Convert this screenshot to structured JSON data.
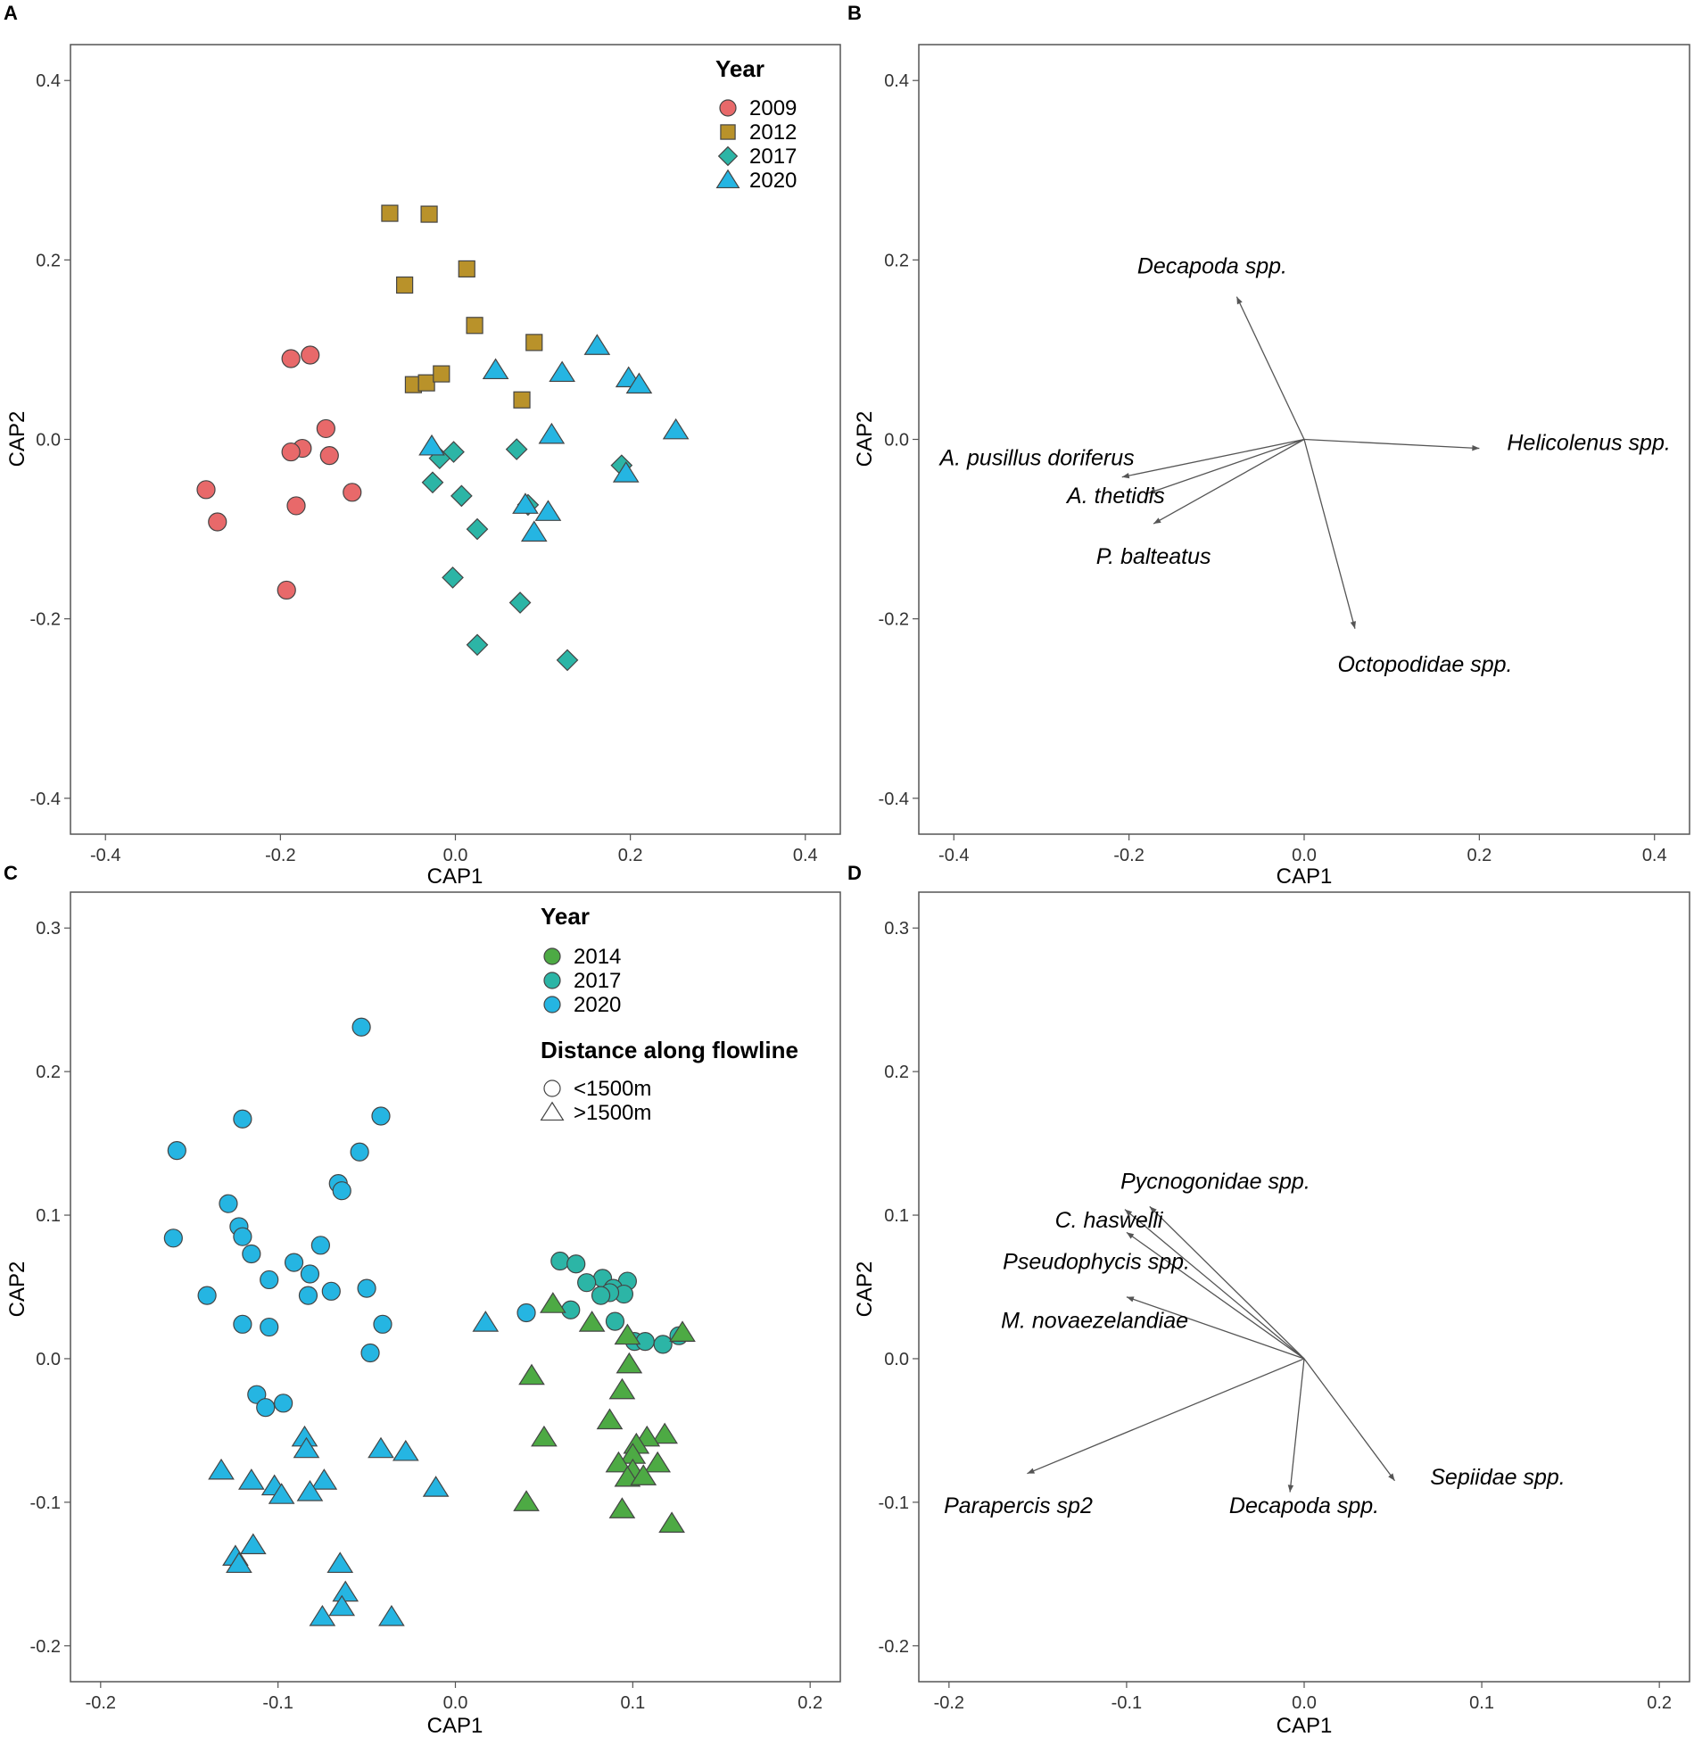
{
  "colors": {
    "y2009": "#E8696A",
    "y2012": "#B9922A",
    "y2014": "#4DAA44",
    "y2017": "#2CB5A6",
    "y2020": "#25B5E2",
    "vector": "#555555"
  },
  "chart_data": [
    {
      "type": "scatter",
      "panel": "A",
      "xlabel": "CAP1",
      "ylabel": "CAP2",
      "xlim": [
        -0.44,
        0.44
      ],
      "ylim": [
        -0.44,
        0.44
      ],
      "xticks": [
        -0.4,
        -0.2,
        0.0,
        0.2,
        0.4
      ],
      "xtick_labels": [
        "-0.4",
        "-0.2",
        "0.0",
        "0.2",
        "0.4"
      ],
      "yticks": [
        -0.4,
        -0.2,
        0.0,
        0.2,
        0.4
      ],
      "ytick_labels": [
        "-0.4",
        "-0.2",
        "0.0",
        "0.2",
        "0.4"
      ],
      "legend": {
        "title": "Year",
        "position": "top-right",
        "entries": [
          {
            "label": "2009",
            "shape": "circle",
            "color": "#E8696A"
          },
          {
            "label": "2012",
            "shape": "square",
            "color": "#B9922A"
          },
          {
            "label": "2017",
            "shape": "diamond",
            "color": "#2CB5A6"
          },
          {
            "label": "2020",
            "shape": "triangle",
            "color": "#25B5E2"
          }
        ]
      },
      "series": [
        {
          "name": "2009",
          "shape": "circle",
          "color": "#E8696A",
          "points": [
            [
              -0.188,
              0.09
            ],
            [
              -0.166,
              0.094
            ],
            [
              -0.148,
              0.012
            ],
            [
              -0.175,
              -0.01
            ],
            [
              -0.188,
              -0.014
            ],
            [
              -0.144,
              -0.018
            ],
            [
              -0.285,
              -0.056
            ],
            [
              -0.118,
              -0.059
            ],
            [
              -0.272,
              -0.092
            ],
            [
              -0.182,
              -0.074
            ],
            [
              -0.193,
              -0.168
            ]
          ]
        },
        {
          "name": "2012",
          "shape": "square",
          "color": "#B9922A",
          "points": [
            [
              -0.075,
              0.252
            ],
            [
              -0.03,
              0.251
            ],
            [
              -0.058,
              0.172
            ],
            [
              0.013,
              0.19
            ],
            [
              0.022,
              0.127
            ],
            [
              0.09,
              0.108
            ],
            [
              -0.048,
              0.061
            ],
            [
              -0.033,
              0.063
            ],
            [
              -0.016,
              0.073
            ],
            [
              0.076,
              0.044
            ]
          ]
        },
        {
          "name": "2017",
          "shape": "diamond",
          "color": "#2CB5A6",
          "points": [
            [
              -0.018,
              -0.021
            ],
            [
              -0.002,
              -0.014
            ],
            [
              0.07,
              -0.011
            ],
            [
              -0.026,
              -0.048
            ],
            [
              0.007,
              -0.063
            ],
            [
              0.083,
              -0.073
            ],
            [
              0.025,
              -0.1
            ],
            [
              -0.003,
              -0.154
            ],
            [
              0.074,
              -0.182
            ],
            [
              0.025,
              -0.229
            ],
            [
              0.128,
              -0.246
            ],
            [
              0.19,
              -0.029
            ]
          ]
        },
        {
          "name": "2020",
          "shape": "triangle",
          "color": "#25B5E2",
          "points": [
            [
              0.162,
              0.104
            ],
            [
              0.122,
              0.074
            ],
            [
              0.046,
              0.077
            ],
            [
              0.198,
              0.068
            ],
            [
              0.21,
              0.061
            ],
            [
              0.252,
              0.01
            ],
            [
              0.11,
              0.005
            ],
            [
              -0.027,
              -0.008
            ],
            [
              0.195,
              -0.038
            ],
            [
              0.08,
              -0.073
            ],
            [
              0.106,
              -0.081
            ],
            [
              0.09,
              -0.104
            ]
          ]
        }
      ]
    },
    {
      "type": "biplot-vectors",
      "panel": "B",
      "xlabel": "CAP1",
      "ylabel": "CAP2",
      "xlim": [
        -0.44,
        0.44
      ],
      "ylim": [
        -0.44,
        0.44
      ],
      "xticks": [
        -0.4,
        -0.2,
        0.0,
        0.2,
        0.4
      ],
      "xtick_labels": [
        "-0.4",
        "-0.2",
        "0.0",
        "0.2",
        "0.4"
      ],
      "yticks": [
        -0.4,
        -0.2,
        0.0,
        0.2,
        0.4
      ],
      "ytick_labels": [
        "-0.4",
        "-0.2",
        "0.0",
        "0.2",
        "0.4"
      ],
      "vectors": [
        {
          "label": "Decapoda spp.",
          "x": -0.077,
          "y": 0.159,
          "label_x": -0.105,
          "label_y": 0.194
        },
        {
          "label": "Helicolenus spp.",
          "x": 0.2,
          "y": -0.01,
          "label_x": 0.325,
          "label_y": -0.003
        },
        {
          "label": "A. pusillus doriferus",
          "x": -0.208,
          "y": -0.042,
          "label_x": -0.305,
          "label_y": -0.02
        },
        {
          "label": "A. thetidis",
          "x": -0.178,
          "y": -0.06,
          "label_x": -0.215,
          "label_y": -0.062
        },
        {
          "label": "P. balteatus",
          "x": -0.172,
          "y": -0.094,
          "label_x": -0.172,
          "label_y": -0.13
        },
        {
          "label": "Octopodidae spp.",
          "x": 0.058,
          "y": -0.211,
          "label_x": 0.138,
          "label_y": -0.25
        }
      ]
    },
    {
      "type": "scatter",
      "panel": "C",
      "xlabel": "CAP1",
      "ylabel": "CAP2",
      "xlim": [
        -0.217,
        0.217
      ],
      "ylim": [
        -0.225,
        0.325
      ],
      "xticks": [
        -0.2,
        -0.1,
        0.0,
        0.1,
        0.2
      ],
      "xtick_labels": [
        "-0.2",
        "-0.1",
        "0.0",
        "0.1",
        "0.2"
      ],
      "yticks": [
        -0.2,
        -0.1,
        0.0,
        0.1,
        0.2,
        0.3
      ],
      "ytick_labels": [
        "-0.2",
        "-0.1",
        "0.0",
        "0.1",
        "0.2",
        "0.3"
      ],
      "legend": {
        "title": "Year",
        "position": "top-right",
        "entries": [
          {
            "label": "2014",
            "color": "#4DAA44"
          },
          {
            "label": "2017",
            "color": "#2CB5A6"
          },
          {
            "label": "2020",
            "color": "#25B5E2"
          }
        ],
        "shape_title": "Distance along flowline",
        "shape_entries": [
          {
            "label": "<1500m",
            "shape": "circle"
          },
          {
            "label": ">1500m",
            "shape": "triangle"
          }
        ]
      },
      "series": [
        {
          "name": "2020 <1500m",
          "shape": "circle",
          "color": "#25B5E2",
          "points": [
            [
              -0.053,
              0.231
            ],
            [
              -0.042,
              0.169
            ],
            [
              -0.12,
              0.167
            ],
            [
              -0.157,
              0.145
            ],
            [
              -0.054,
              0.144
            ],
            [
              -0.066,
              0.122
            ],
            [
              -0.064,
              0.117
            ],
            [
              -0.128,
              0.108
            ],
            [
              -0.122,
              0.092
            ],
            [
              -0.12,
              0.085
            ],
            [
              -0.115,
              0.073
            ],
            [
              -0.159,
              0.084
            ],
            [
              -0.091,
              0.067
            ],
            [
              -0.076,
              0.079
            ],
            [
              -0.082,
              0.059
            ],
            [
              -0.105,
              0.055
            ],
            [
              -0.07,
              0.047
            ],
            [
              -0.05,
              0.049
            ],
            [
              -0.14,
              0.044
            ],
            [
              -0.083,
              0.044
            ],
            [
              -0.12,
              0.024
            ],
            [
              -0.105,
              0.022
            ],
            [
              -0.041,
              0.024
            ],
            [
              -0.048,
              0.004
            ],
            [
              0.04,
              0.032
            ],
            [
              -0.112,
              -0.025
            ],
            [
              -0.097,
              -0.031
            ],
            [
              -0.107,
              -0.034
            ]
          ]
        },
        {
          "name": "2020 >1500m",
          "shape": "triangle",
          "color": "#25B5E2",
          "points": [
            [
              0.017,
              0.025
            ],
            [
              -0.085,
              -0.055
            ],
            [
              -0.084,
              -0.063
            ],
            [
              -0.042,
              -0.063
            ],
            [
              -0.028,
              -0.065
            ],
            [
              -0.132,
              -0.078
            ],
            [
              -0.115,
              -0.085
            ],
            [
              -0.074,
              -0.085
            ],
            [
              -0.082,
              -0.093
            ],
            [
              -0.102,
              -0.089
            ],
            [
              -0.098,
              -0.095
            ],
            [
              -0.011,
              -0.09
            ],
            [
              -0.124,
              -0.138
            ],
            [
              -0.114,
              -0.13
            ],
            [
              -0.122,
              -0.143
            ],
            [
              -0.065,
              -0.143
            ],
            [
              -0.062,
              -0.163
            ],
            [
              -0.064,
              -0.173
            ],
            [
              -0.075,
              -0.18
            ],
            [
              -0.036,
              -0.18
            ]
          ]
        },
        {
          "name": "2017 <1500m",
          "shape": "circle",
          "color": "#2CB5A6",
          "points": [
            [
              0.059,
              0.068
            ],
            [
              0.068,
              0.066
            ],
            [
              0.083,
              0.056
            ],
            [
              0.097,
              0.054
            ],
            [
              0.074,
              0.053
            ],
            [
              0.089,
              0.049
            ],
            [
              0.095,
              0.045
            ],
            [
              0.087,
              0.046
            ],
            [
              0.082,
              0.044
            ],
            [
              0.065,
              0.034
            ],
            [
              0.09,
              0.026
            ],
            [
              0.101,
              0.012
            ],
            [
              0.107,
              0.012
            ],
            [
              0.117,
              0.01
            ],
            [
              0.126,
              0.016
            ]
          ]
        },
        {
          "name": "2014 >1500m",
          "shape": "triangle",
          "color": "#4DAA44",
          "points": [
            [
              0.055,
              0.038
            ],
            [
              0.077,
              0.025
            ],
            [
              0.128,
              0.018
            ],
            [
              0.097,
              0.016
            ],
            [
              0.043,
              -0.012
            ],
            [
              0.098,
              -0.004
            ],
            [
              0.094,
              -0.022
            ],
            [
              0.087,
              -0.043
            ],
            [
              0.05,
              -0.055
            ],
            [
              0.118,
              -0.053
            ],
            [
              0.108,
              -0.055
            ],
            [
              0.102,
              -0.06
            ],
            [
              0.1,
              -0.067
            ],
            [
              0.092,
              -0.073
            ],
            [
              0.1,
              -0.078
            ],
            [
              0.114,
              -0.073
            ],
            [
              0.097,
              -0.083
            ],
            [
              0.106,
              -0.082
            ],
            [
              0.04,
              -0.1
            ],
            [
              0.094,
              -0.105
            ],
            [
              0.122,
              -0.115
            ]
          ]
        }
      ]
    },
    {
      "type": "biplot-vectors",
      "panel": "D",
      "xlabel": "CAP1",
      "ylabel": "CAP2",
      "xlim": [
        -0.217,
        0.217
      ],
      "ylim": [
        -0.225,
        0.325
      ],
      "xticks": [
        -0.2,
        -0.1,
        0.0,
        0.1,
        0.2
      ],
      "xtick_labels": [
        "-0.2",
        "-0.1",
        "0.0",
        "0.1",
        "0.2"
      ],
      "yticks": [
        -0.2,
        -0.1,
        0.0,
        0.1,
        0.2,
        0.3
      ],
      "ytick_labels": [
        "-0.2",
        "-0.1",
        "0.0",
        "0.1",
        "0.2",
        "0.3"
      ],
      "vectors": [
        {
          "label": "Pycnogonidae spp.",
          "x": -0.087,
          "y": 0.106,
          "label_x": -0.05,
          "label_y": 0.124
        },
        {
          "label": "C. haswelli",
          "x": -0.101,
          "y": 0.104,
          "label_x": -0.11,
          "label_y": 0.097
        },
        {
          "label": "Pseudophycis spp.",
          "x": -0.1,
          "y": 0.088,
          "label_x": -0.117,
          "label_y": 0.068
        },
        {
          "label": "M. novaezelandiae",
          "x": -0.1,
          "y": 0.043,
          "label_x": -0.118,
          "label_y": 0.027
        },
        {
          "label": "Parapercis sp2",
          "x": -0.156,
          "y": -0.08,
          "label_x": -0.161,
          "label_y": -0.102
        },
        {
          "label": "Decapoda spp.",
          "x": -0.008,
          "y": -0.093,
          "label_x": 0.0,
          "label_y": -0.102
        },
        {
          "label": "Sepiidae spp.",
          "x": 0.051,
          "y": -0.085,
          "label_x": 0.109,
          "label_y": -0.082
        }
      ]
    }
  ]
}
